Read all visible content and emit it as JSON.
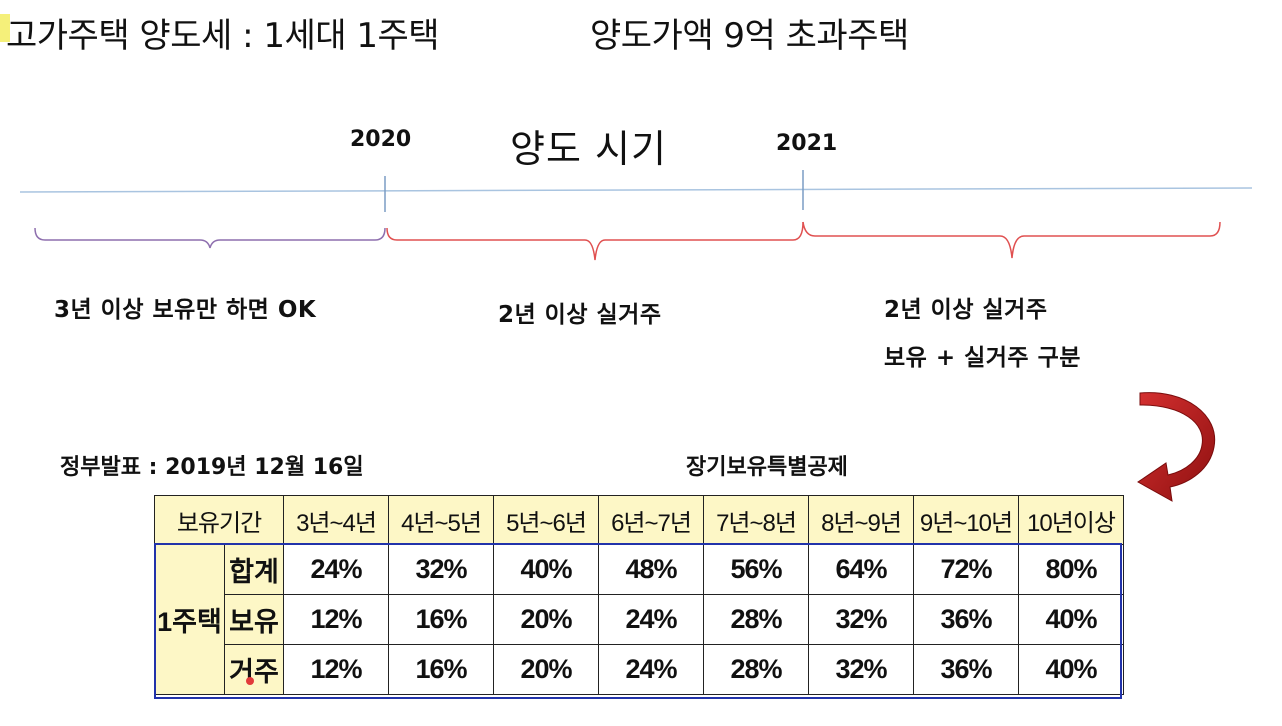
{
  "header": {
    "title": "고가주택 양도세 : 1세대 1주택",
    "subtitle": "양도가액 9억 초과주택"
  },
  "timeline": {
    "heading": "양도 시기",
    "years": [
      "2020",
      "2021"
    ],
    "periods": [
      {
        "label": "3년 이상 보유만 하면 OK"
      },
      {
        "label": "2년 이상 실거주"
      },
      {
        "label": "2년 이상 실거주",
        "note": "보유 + 실거주 구분"
      }
    ],
    "colors": {
      "axis": "#a9c4e0",
      "period_1": "#8e6fae",
      "period_2": "#e05050"
    }
  },
  "announcement": "정부발표 : 2019년 12월 16일",
  "table": {
    "title": "장기보유특별공제",
    "header_label": "보유기간",
    "columns": [
      "3년~4년",
      "4년~5년",
      "5년~6년",
      "6년~7년",
      "7년~8년",
      "8년~9년",
      "9년~10년",
      "10년이상"
    ],
    "group_label": "1주택",
    "rows": [
      {
        "label": "합계",
        "values": [
          "24%",
          "32%",
          "40%",
          "48%",
          "56%",
          "64%",
          "72%",
          "80%"
        ]
      },
      {
        "label": "보유",
        "values": [
          "12%",
          "16%",
          "20%",
          "24%",
          "28%",
          "32%",
          "36%",
          "40%"
        ]
      },
      {
        "label": "거주",
        "values": [
          "12%",
          "16%",
          "20%",
          "24%",
          "28%",
          "32%",
          "36%",
          "40%"
        ]
      }
    ],
    "colors": {
      "header_bg": "#fdf7c6",
      "outline": "#2233aa",
      "arrow": "#b51e1e"
    }
  }
}
